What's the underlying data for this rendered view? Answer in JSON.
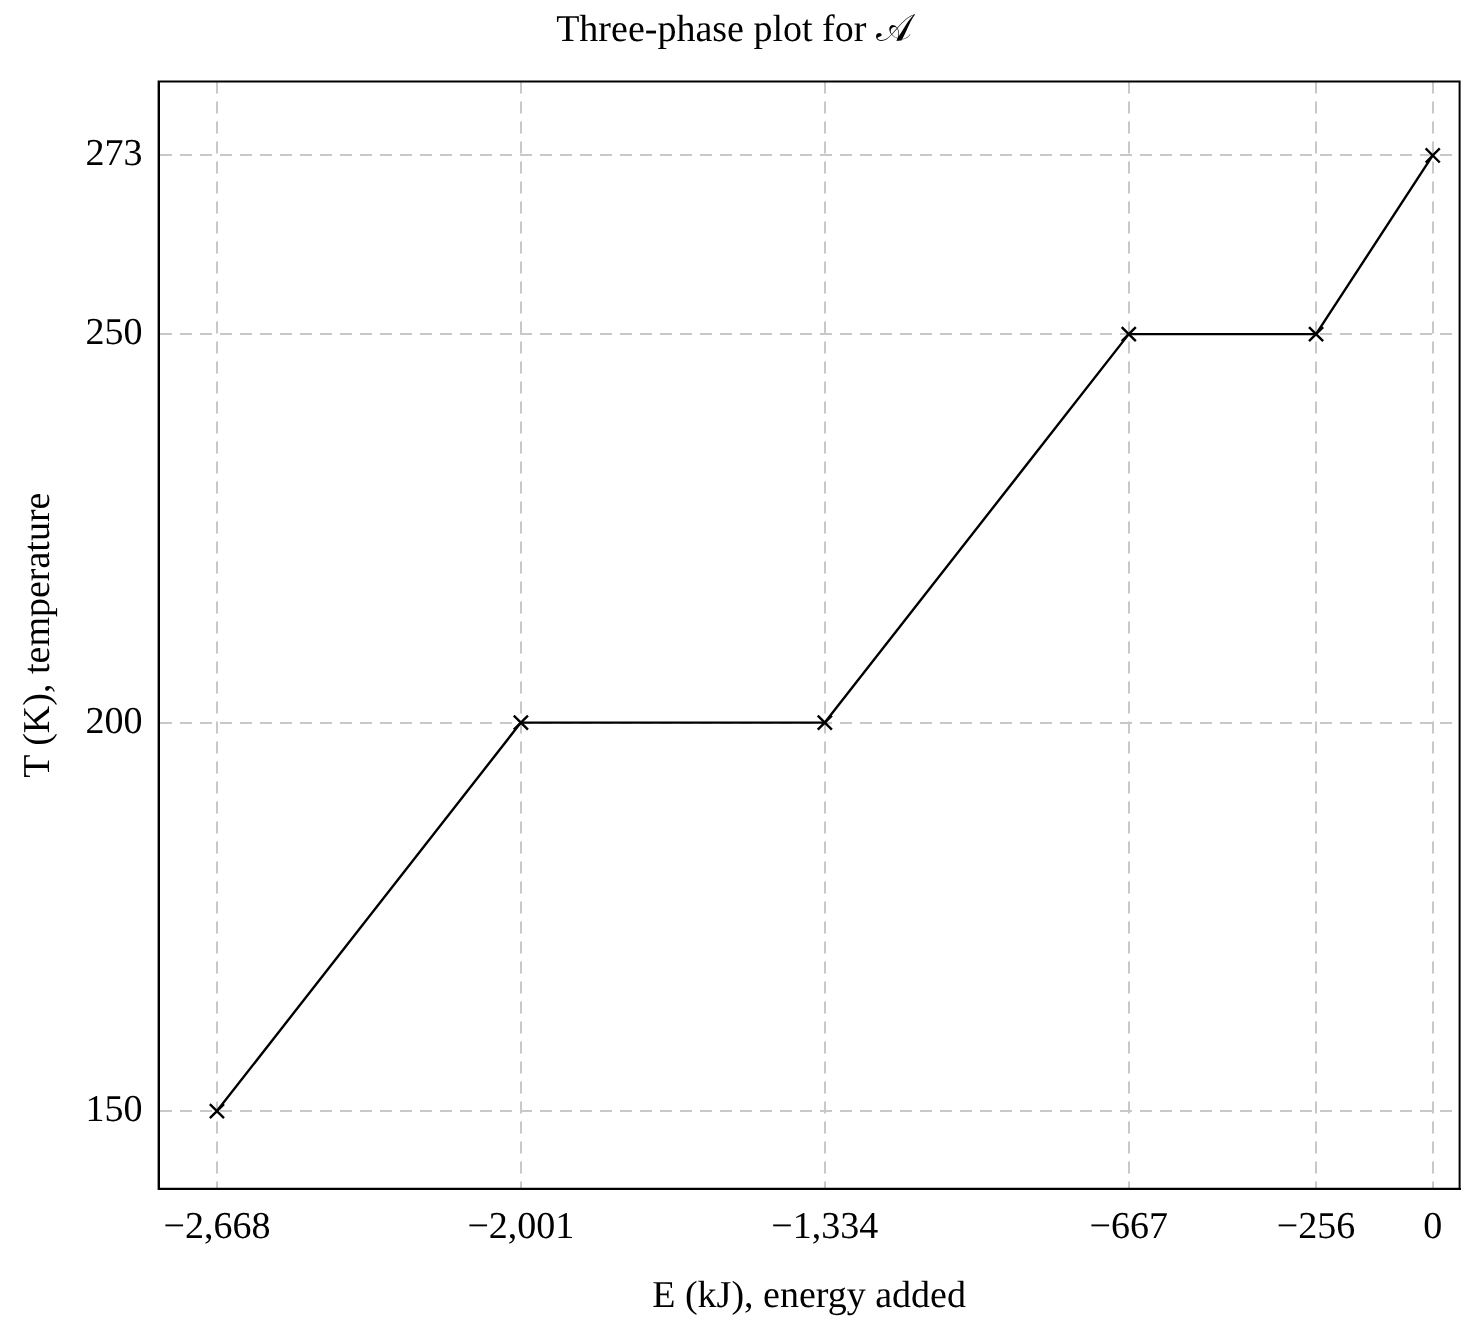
{
  "chart_data": {
    "type": "line",
    "title": "Three-phase plot for 𝒜",
    "xlabel": "E (kJ), energy added",
    "ylabel": "T (K), temperature",
    "x": [
      -2668,
      -2001,
      -1334,
      -667,
      -256,
      0
    ],
    "series": [
      {
        "color": "#000000",
        "values": [
          150,
          200,
          200,
          250,
          250,
          273
        ]
      }
    ],
    "xlim": [
      -2796,
      59
    ],
    "xticks": [
      {
        "value": -2668,
        "label": "−2,668"
      },
      {
        "value": -2001,
        "label": "−2,001"
      },
      {
        "value": -1334,
        "label": "−1,334"
      },
      {
        "value": -667,
        "label": "−667"
      },
      {
        "value": -256,
        "label": "−256"
      },
      0
    ],
    "ylim": [
      140,
      282.5
    ],
    "yticks": [
      150,
      200,
      250,
      273
    ],
    "grid": true,
    "legend": false,
    "marker": "cross",
    "line_style": "solid"
  }
}
